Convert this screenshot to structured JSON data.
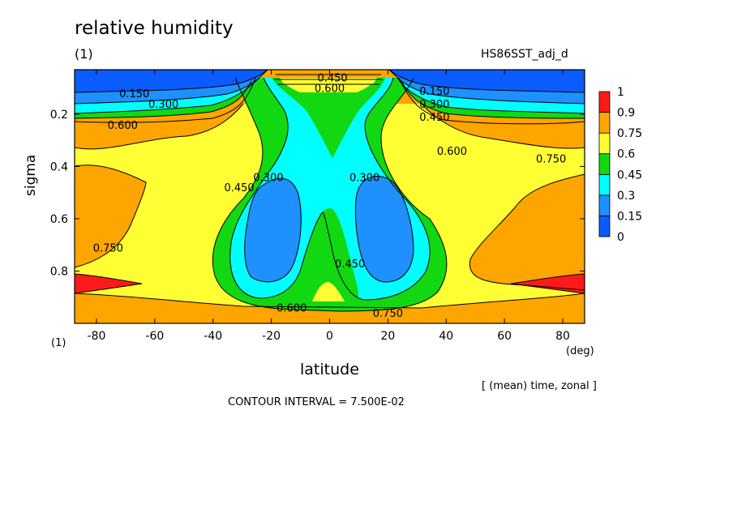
{
  "title": "relative humidity",
  "units": "(1)",
  "experiment": "HS86SST_adj_d",
  "averaging_note": "[ (mean) time, zonal ]",
  "contour_interval_text": "CONTOUR INTERVAL = 7.500E-02",
  "colors": {
    "0": "#0a5cff",
    "0.15": "#1e90ff",
    "0.3": "#00ffff",
    "0.45": "#12d812",
    "0.6": "#ffff33",
    "0.75": "#ffa500",
    "0.9": "#ff1a1a"
  },
  "chart_data": {
    "type": "heatmap",
    "xlabel": "latitude",
    "ylabel": "sigma",
    "x_unit": "(deg)",
    "y_unit": "(1)",
    "xlim": [
      -87.5,
      87.5
    ],
    "ylim": [
      1.0,
      0.03
    ],
    "x_ticks": [
      -80,
      -60,
      -40,
      -20,
      0,
      20,
      40,
      60,
      80
    ],
    "x_tick_labels": [
      "-80",
      "-60",
      "-40",
      "-20",
      "0",
      "20",
      "40",
      "60",
      "80"
    ],
    "y_ticks": [
      0.2,
      0.4,
      0.6,
      0.8
    ],
    "y_tick_labels": [
      "0.2",
      "0.4",
      "0.6",
      "0.8"
    ],
    "color_levels": [
      0,
      0.15,
      0.3,
      0.45,
      0.6,
      0.75,
      0.9,
      1
    ],
    "colorbar_labels": [
      "0",
      "0.15",
      "0.3",
      "0.45",
      "0.6",
      "0.75",
      "0.9",
      "1"
    ],
    "contour_interval": 0.075,
    "contour_labels": [
      {
        "text": "0.150",
        "lat": -67,
        "sigma": 0.12
      },
      {
        "text": "0.300",
        "lat": -57,
        "sigma": 0.16
      },
      {
        "text": "0.600",
        "lat": -71,
        "sigma": 0.24
      },
      {
        "text": "0.750",
        "lat": -76,
        "sigma": 0.71
      },
      {
        "text": "0.450",
        "lat": -31,
        "sigma": 0.48
      },
      {
        "text": "0.300",
        "lat": -21,
        "sigma": 0.44
      },
      {
        "text": "0.450",
        "lat": 1,
        "sigma": 0.06
      },
      {
        "text": "0.600",
        "lat": 0,
        "sigma": 0.1
      },
      {
        "text": "0.150",
        "lat": 36,
        "sigma": 0.11
      },
      {
        "text": "0.300",
        "lat": 36,
        "sigma": 0.16
      },
      {
        "text": "0.450",
        "lat": 36,
        "sigma": 0.21
      },
      {
        "text": "0.600",
        "lat": 42,
        "sigma": 0.34
      },
      {
        "text": "0.750",
        "lat": 76,
        "sigma": 0.37
      },
      {
        "text": "0.300",
        "lat": 12,
        "sigma": 0.44
      },
      {
        "text": "0.450",
        "lat": 7,
        "sigma": 0.77
      },
      {
        "text": "0.600",
        "lat": -13,
        "sigma": 0.94
      },
      {
        "text": "0.750",
        "lat": 20,
        "sigma": 0.96
      }
    ]
  }
}
